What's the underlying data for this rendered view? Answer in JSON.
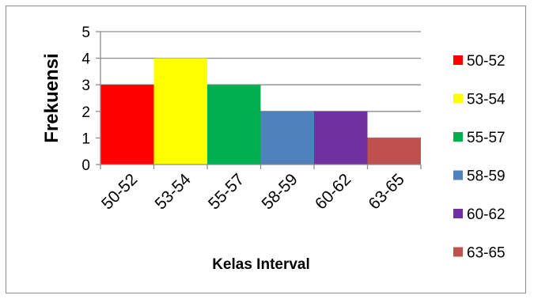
{
  "chart_data": {
    "type": "bar",
    "categories": [
      "50-52",
      "53-54",
      "55-57",
      "58-59",
      "60-62",
      "63-65"
    ],
    "values": [
      3,
      4,
      3,
      2,
      2,
      1
    ],
    "colors": [
      "#ff0000",
      "#ffff00",
      "#00b050",
      "#4f81bd",
      "#7030a0",
      "#c0504d"
    ],
    "xlabel": "Kelas Interval",
    "ylabel": "Frekuensi",
    "ylim": [
      0,
      5
    ],
    "yticks": [
      0,
      1,
      2,
      3,
      4,
      5
    ],
    "grid": true,
    "legend_position": "right",
    "legend": [
      "50-52",
      "53-54",
      "55-57",
      "58-59",
      "60-62",
      "63-65"
    ]
  }
}
